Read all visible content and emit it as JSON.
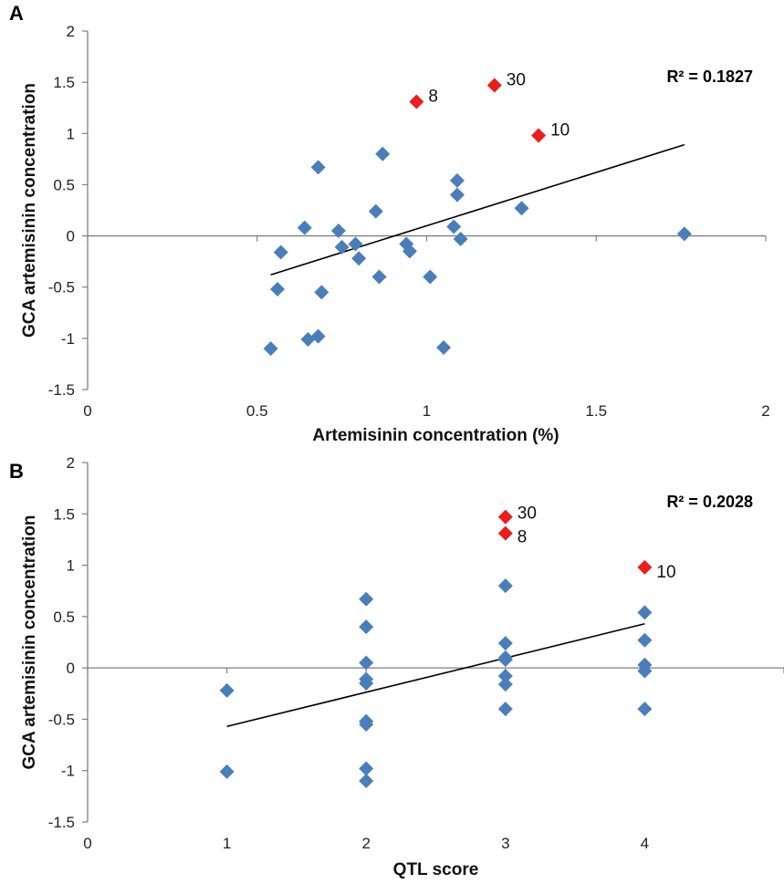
{
  "chart_data": [
    {
      "type": "scatter",
      "panel_label": "A",
      "xlabel": "Artemisinin concentration (%)",
      "ylabel": "GCA artemisinin concentration",
      "xlim": [
        0,
        2
      ],
      "ylim": [
        -1.5,
        2
      ],
      "x_ticks": [
        "0",
        "0.5",
        "1",
        "1.5",
        "2"
      ],
      "y_ticks": [
        "-1.5",
        "-1",
        "-0.5",
        "0",
        "0.5",
        "1",
        "1.5",
        "2"
      ],
      "r2_label": "R² = 0.1827",
      "colors": {
        "points": "#4a7ebb",
        "highlight": "#ee1c1c",
        "trendline": "#000000"
      },
      "series": [
        {
          "points": [
            [
              0.54,
              -1.1
            ],
            [
              0.56,
              -0.52
            ],
            [
              0.57,
              -0.16
            ],
            [
              0.64,
              0.08
            ],
            [
              0.65,
              -1.01
            ],
            [
              0.68,
              0.67
            ],
            [
              0.68,
              -0.98
            ],
            [
              0.69,
              -0.55
            ],
            [
              0.74,
              0.05
            ],
            [
              0.75,
              -0.11
            ],
            [
              0.79,
              -0.08
            ],
            [
              0.8,
              -0.22
            ],
            [
              0.85,
              0.24
            ],
            [
              0.86,
              -0.4
            ],
            [
              0.87,
              0.8
            ],
            [
              0.94,
              -0.08
            ],
            [
              0.95,
              -0.15
            ],
            [
              1.01,
              -0.4
            ],
            [
              1.05,
              -1.09
            ],
            [
              1.08,
              0.09
            ],
            [
              1.09,
              0.54
            ],
            [
              1.09,
              0.4
            ],
            [
              1.1,
              -0.03
            ],
            [
              1.28,
              0.27
            ],
            [
              1.76,
              0.02
            ]
          ]
        },
        {
          "points": [
            [
              0.97,
              1.31,
              "8"
            ],
            [
              1.2,
              1.47,
              "30"
            ],
            [
              1.33,
              0.98,
              "10"
            ]
          ]
        }
      ],
      "trendline": [
        [
          0.54,
          -0.38
        ],
        [
          1.76,
          0.89
        ]
      ]
    },
    {
      "type": "scatter",
      "panel_label": "B",
      "xlabel": "QTL score",
      "ylabel": "GCA artemisinin concentration",
      "xlim": [
        0,
        5
      ],
      "ylim": [
        -1.5,
        2
      ],
      "x_ticks": [
        "0",
        "1",
        "2",
        "3",
        "4",
        "5"
      ],
      "y_ticks": [
        "-1.5",
        "-1",
        "-0.5",
        "0",
        "0.5",
        "1",
        "1.5",
        "2"
      ],
      "r2_label": "R² = 0.2028",
      "colors": {
        "points": "#4a7ebb",
        "highlight": "#ee1c1c",
        "trendline": "#000000"
      },
      "series": [
        {
          "points": [
            [
              1,
              -0.22
            ],
            [
              1,
              -1.01
            ],
            [
              2,
              0.67
            ],
            [
              2,
              0.4
            ],
            [
              2,
              0.05
            ],
            [
              2,
              -0.11
            ],
            [
              2,
              -0.15
            ],
            [
              2,
              -0.52
            ],
            [
              2,
              -0.55
            ],
            [
              2,
              -0.98
            ],
            [
              2,
              -1.1
            ],
            [
              3,
              0.8
            ],
            [
              3,
              0.24
            ],
            [
              3,
              0.1
            ],
            [
              3,
              0.08
            ],
            [
              3,
              -0.08
            ],
            [
              3,
              -0.16
            ],
            [
              3,
              -0.4
            ],
            [
              4,
              0.54
            ],
            [
              4,
              0.27
            ],
            [
              4,
              0.03
            ],
            [
              4,
              -0.03
            ],
            [
              4,
              -0.4
            ]
          ]
        },
        {
          "points": [
            [
              3,
              1.47,
              "30"
            ],
            [
              3,
              1.31,
              "8"
            ],
            [
              4,
              0.98,
              "10"
            ]
          ]
        }
      ],
      "trendline": [
        [
          1,
          -0.57
        ],
        [
          4,
          0.43
        ]
      ]
    }
  ]
}
